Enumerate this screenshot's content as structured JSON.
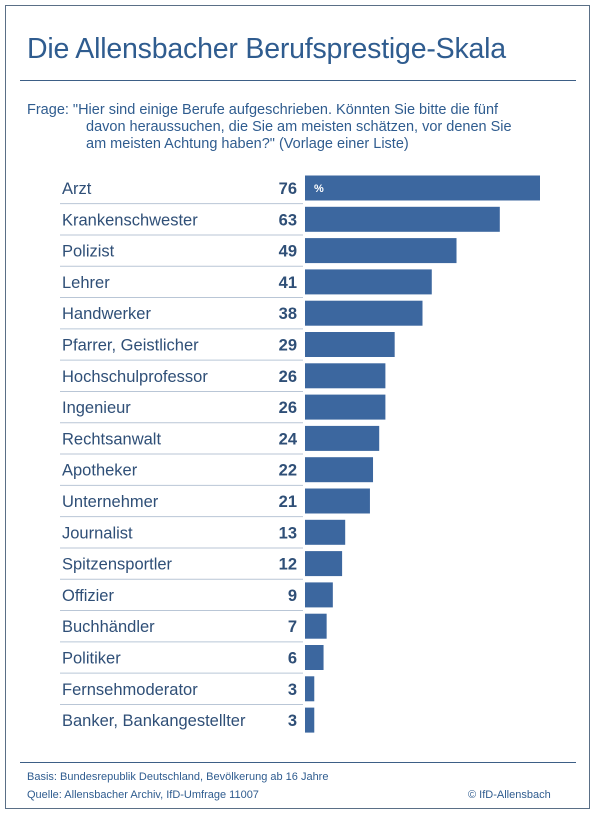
{
  "title": "Die Allensbacher Berufsprestige-Skala",
  "question_lines": [
    "Frage: \"Hier sind einige Berufe aufgeschrieben. Könnten Sie bitte die fünf",
    "davon heraussuchen, die Sie am meisten schätzen, vor denen Sie",
    "am meisten Achtung haben?\" (Vorlage einer Liste)"
  ],
  "chart_data": {
    "type": "bar",
    "orientation": "horizontal",
    "unit": "%",
    "categories": [
      "Arzt",
      "Krankenschwester",
      "Polizist",
      "Lehrer",
      "Handwerker",
      "Pfarrer, Geistlicher",
      "Hochschulprofessor",
      "Ingenieur",
      "Rechtsanwalt",
      "Apotheker",
      "Unternehmer",
      "Journalist",
      "Spitzensportler",
      "Offizier",
      "Buchhändler",
      "Politiker",
      "Fernsehmoderator",
      "Banker, Bankangestellter"
    ],
    "values": [
      76,
      63,
      49,
      41,
      38,
      29,
      26,
      26,
      24,
      22,
      21,
      13,
      12,
      9,
      7,
      6,
      3,
      3
    ],
    "xlim": [
      0,
      76
    ],
    "bar_color": "#3c679f",
    "grid": false
  },
  "footer": {
    "basis": "Basis: Bundesrepublik Deutschland, Bevölkerung ab 16 Jahre",
    "source": "Quelle: Allensbacher Archiv, IfD-Umfrage 11007",
    "copyright": "© IfD-Allensbach"
  }
}
